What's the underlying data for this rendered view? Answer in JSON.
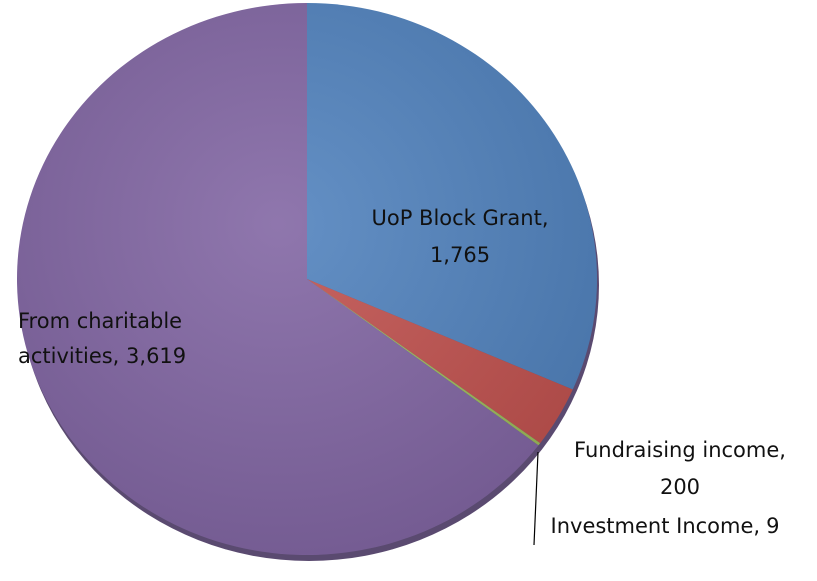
{
  "chart_data": {
    "type": "pie",
    "categories": [
      "UoP Block Grant",
      "Fundraising income",
      "Investment Income",
      "From charitable activities"
    ],
    "values": [
      1765,
      200,
      9,
      3619
    ],
    "value_labels": [
      "1,765",
      "200",
      "9",
      "3,619"
    ],
    "colors": [
      "#4f81bd",
      "#c0504d",
      "#9bbb59",
      "#8064a2"
    ]
  }
}
